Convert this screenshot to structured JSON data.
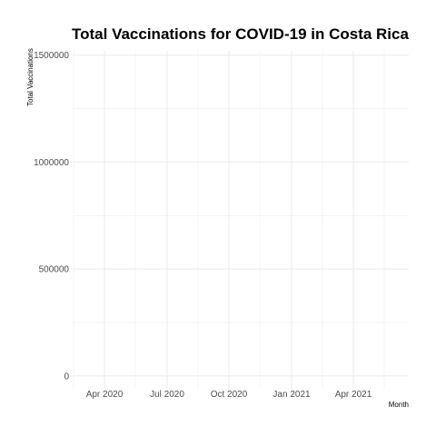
{
  "chart_data": {
    "type": "line",
    "title": "Total Vaccinations for COVID-19 in Costa Rica",
    "xlabel": "Month",
    "ylabel": "Total Vaccinations",
    "x_ticks": [
      "Apr 2020",
      "Jul 2020",
      "Oct 2020",
      "Jan 2021",
      "Apr 2021"
    ],
    "y_ticks": [
      "0",
      "500000",
      "1000000",
      "1500000"
    ],
    "ylim": [
      -60000,
      1520000
    ],
    "grid": true,
    "legend": "none",
    "series": []
  },
  "colors": {
    "grid_major": "#ebebeb",
    "grid_minor": "#f3f3f3",
    "tick_text": "#4d4d4d",
    "background": "#ffffff"
  }
}
